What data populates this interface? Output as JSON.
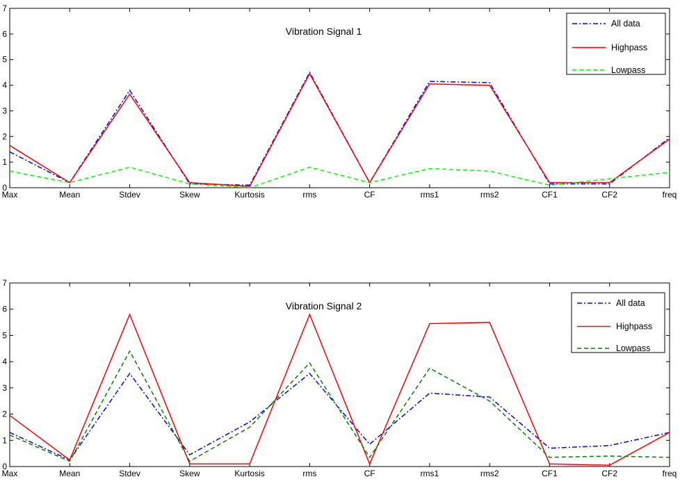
{
  "chart_data": [
    {
      "type": "line",
      "title": "Vibration Signal 1",
      "xlabel": "",
      "ylabel": "",
      "categories": [
        "Max",
        "Mean",
        "Stdev",
        "Skew",
        "Kurtosis",
        "rms",
        "CF",
        "rms1",
        "rms2",
        "CF1",
        "CF2",
        "freq"
      ],
      "ylim": [
        0,
        7
      ],
      "yticks": [
        0,
        1,
        2,
        3,
        4,
        5,
        6,
        7
      ],
      "grid": false,
      "legend_position": "top-right",
      "series": [
        {
          "name": "All data",
          "color": "#0000ff",
          "dash": "dash-dot",
          "values": [
            1.4,
            0.2,
            3.8,
            0.15,
            0.1,
            4.5,
            0.2,
            4.15,
            4.1,
            0.15,
            0.15,
            1.95
          ]
        },
        {
          "name": "Highpass",
          "color": "#ff0000",
          "dash": "solid",
          "values": [
            1.65,
            0.2,
            3.65,
            0.2,
            0.05,
            4.45,
            0.2,
            4.05,
            4.0,
            0.2,
            0.2,
            1.9
          ]
        },
        {
          "name": "Lowpass",
          "color": "#00ff00",
          "dash": "dashed",
          "values": [
            0.65,
            0.2,
            0.8,
            0.15,
            0.0,
            0.8,
            0.2,
            0.75,
            0.65,
            0.1,
            0.35,
            0.6
          ]
        }
      ]
    },
    {
      "type": "line",
      "title": "Vibration Signal 2",
      "xlabel": "",
      "ylabel": "",
      "categories": [
        "Max",
        "Mean",
        "Stdev",
        "Skew",
        "Kurtosis",
        "rms",
        "CF",
        "rms1",
        "rms2",
        "CF1",
        "CF2",
        "freq"
      ],
      "ylim": [
        0,
        7
      ],
      "yticks": [
        0,
        1,
        2,
        3,
        4,
        5,
        6,
        7
      ],
      "grid": false,
      "legend_position": "top-right",
      "series": [
        {
          "name": "All data",
          "color": "#0000ff",
          "dash": "dash-dot",
          "values": [
            1.3,
            0.25,
            3.55,
            0.45,
            1.7,
            3.55,
            0.85,
            2.8,
            2.65,
            0.7,
            0.8,
            1.3
          ]
        },
        {
          "name": "Highpass",
          "color": "#ff0000",
          "dash": "solid",
          "values": [
            1.95,
            0.25,
            5.8,
            0.1,
            0.1,
            5.8,
            0.1,
            5.45,
            5.5,
            0.1,
            0.05,
            1.3
          ]
        },
        {
          "name": "Lowpass",
          "color": "#008000",
          "dash": "dashed",
          "values": [
            1.2,
            0.2,
            4.4,
            0.2,
            1.5,
            3.95,
            0.35,
            3.75,
            2.5,
            0.35,
            0.4,
            0.35
          ]
        }
      ]
    }
  ]
}
